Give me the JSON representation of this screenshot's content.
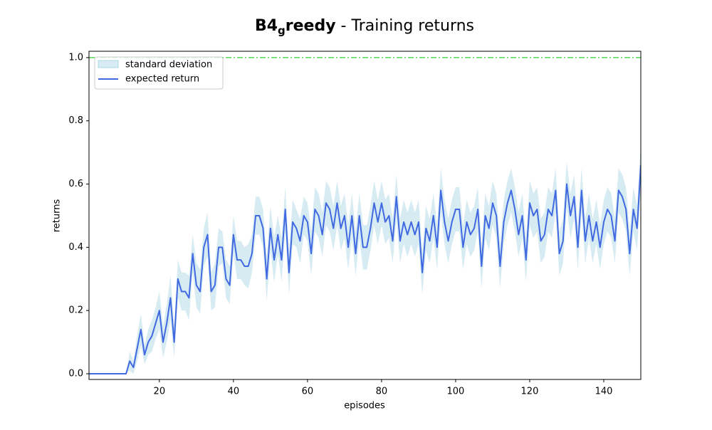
{
  "chart_data": {
    "type": "line",
    "title_parts": [
      "B4",
      "g",
      "reedy",
      " - Training returns"
    ],
    "x_label": "episodes",
    "y_label": "returns",
    "xlim": [
      1,
      150
    ],
    "ylim": [
      -0.018,
      1.02
    ],
    "xticks": [
      20,
      40,
      60,
      80,
      100,
      120,
      140
    ],
    "yticks": [
      {
        "value": 0,
        "label": "0.0"
      },
      {
        "value": 0.2,
        "label": "0.2"
      },
      {
        "value": 0.4,
        "label": "0.4"
      },
      {
        "value": 0.6,
        "label": "0.6"
      },
      {
        "value": 0.8,
        "label": "0.8"
      },
      {
        "value": 1,
        "label": "1.0"
      }
    ],
    "legend": "upper left",
    "hline": {
      "value": 1,
      "color": "#32cd32"
    },
    "x": [
      1,
      2,
      3,
      4,
      5,
      6,
      7,
      8,
      9,
      10,
      11,
      12,
      13,
      14,
      15,
      16,
      17,
      18,
      19,
      20,
      21,
      22,
      23,
      24,
      25,
      26,
      27,
      28,
      29,
      30,
      31,
      32,
      33,
      34,
      35,
      36,
      37,
      38,
      39,
      40,
      41,
      42,
      43,
      44,
      45,
      46,
      47,
      48,
      49,
      50,
      51,
      52,
      53,
      54,
      55,
      56,
      57,
      58,
      59,
      60,
      61,
      62,
      63,
      64,
      65,
      66,
      67,
      68,
      69,
      70,
      71,
      72,
      73,
      74,
      75,
      76,
      77,
      78,
      79,
      80,
      81,
      82,
      83,
      84,
      85,
      86,
      87,
      88,
      89,
      90,
      91,
      92,
      93,
      94,
      95,
      96,
      97,
      98,
      99,
      100,
      101,
      102,
      103,
      104,
      105,
      106,
      107,
      108,
      109,
      110,
      111,
      112,
      113,
      114,
      115,
      116,
      117,
      118,
      119,
      120,
      121,
      122,
      123,
      124,
      125,
      126,
      127,
      128,
      129,
      130,
      131,
      132,
      133,
      134,
      135,
      136,
      137,
      138,
      139,
      140,
      141,
      142,
      143,
      144,
      145,
      146,
      147,
      148,
      149,
      150
    ],
    "band": {
      "name": "standard deviation",
      "color": "#add8e6",
      "std": [
        0,
        0,
        0,
        0,
        0,
        0,
        0,
        0,
        0,
        0,
        0,
        0.03,
        0.02,
        0.04,
        0.05,
        0.03,
        0.04,
        0.05,
        0.05,
        0.06,
        0.05,
        0.06,
        0.07,
        0.05,
        0.06,
        0.06,
        0.06,
        0.07,
        0.06,
        0.07,
        0.07,
        0.06,
        0.07,
        0.06,
        0.07,
        0.06,
        0.05,
        0.06,
        0.06,
        0.06,
        0.06,
        0.06,
        0.06,
        0.07,
        0.06,
        0.06,
        0.06,
        0.06,
        0.07,
        0.07,
        0.07,
        0.06,
        0.07,
        0.07,
        0.07,
        0.07,
        0.06,
        0.07,
        0.06,
        0.06,
        0.07,
        0.07,
        0.07,
        0.07,
        0.07,
        0.07,
        0.07,
        0.07,
        0.07,
        0.07,
        0.07,
        0.07,
        0.07,
        0.07,
        0.07,
        0.07,
        0.07,
        0.07,
        0.07,
        0.07,
        0.07,
        0.07,
        0.07,
        0.07,
        0.07,
        0.07,
        0.07,
        0.07,
        0.07,
        0.07,
        0.07,
        0.07,
        0.07,
        0.07,
        0.07,
        0.07,
        0.07,
        0.07,
        0.07,
        0.07,
        0.07,
        0.07,
        0.07,
        0.07,
        0.07,
        0.07,
        0.07,
        0.07,
        0.07,
        0.07,
        0.07,
        0.07,
        0.07,
        0.07,
        0.07,
        0.07,
        0.07,
        0.07,
        0.07,
        0.07,
        0.07,
        0.07,
        0.07,
        0.07,
        0.07,
        0.07,
        0.07,
        0.07,
        0.07,
        0.07,
        0.07,
        0.07,
        0.07,
        0.07,
        0.07,
        0.07,
        0.07,
        0.07,
        0.07,
        0.07,
        0.07,
        0.07,
        0.07,
        0.07,
        0.07,
        0.07,
        0.07,
        0.07,
        0.07,
        0.07,
        0.07,
        0.07,
        0.07,
        0.07,
        0.07,
        0.07,
        0.07,
        0.07,
        0.07,
        0.07
      ]
    },
    "series": [
      {
        "name": "expected return",
        "color": "#4169e1",
        "values": [
          0,
          0,
          0,
          0,
          0,
          0,
          0,
          0,
          0,
          0,
          0,
          0.04,
          0.02,
          0.08,
          0.14,
          0.06,
          0.1,
          0.12,
          0.16,
          0.2,
          0.1,
          0.16,
          0.24,
          0.1,
          0.3,
          0.26,
          0.26,
          0.24,
          0.38,
          0.28,
          0.26,
          0.4,
          0.44,
          0.26,
          0.28,
          0.4,
          0.4,
          0.3,
          0.28,
          0.44,
          0.36,
          0.36,
          0.34,
          0.34,
          0.38,
          0.5,
          0.5,
          0.46,
          0.3,
          0.46,
          0.36,
          0.44,
          0.36,
          0.52,
          0.32,
          0.48,
          0.46,
          0.42,
          0.5,
          0.48,
          0.38,
          0.52,
          0.5,
          0.44,
          0.54,
          0.52,
          0.46,
          0.54,
          0.46,
          0.5,
          0.4,
          0.5,
          0.38,
          0.5,
          0.4,
          0.4,
          0.46,
          0.54,
          0.48,
          0.54,
          0.48,
          0.5,
          0.42,
          0.56,
          0.42,
          0.48,
          0.44,
          0.48,
          0.44,
          0.48,
          0.32,
          0.46,
          0.42,
          0.5,
          0.4,
          0.58,
          0.48,
          0.42,
          0.48,
          0.52,
          0.52,
          0.4,
          0.48,
          0.44,
          0.46,
          0.52,
          0.34,
          0.5,
          0.46,
          0.54,
          0.5,
          0.34,
          0.48,
          0.54,
          0.58,
          0.52,
          0.44,
          0.5,
          0.36,
          0.54,
          0.5,
          0.52,
          0.42,
          0.44,
          0.52,
          0.5,
          0.58,
          0.38,
          0.42,
          0.6,
          0.5,
          0.56,
          0.4,
          0.58,
          0.42,
          0.5,
          0.42,
          0.48,
          0.4,
          0.48,
          0.52,
          0.5,
          0.42,
          0.58,
          0.56,
          0.52,
          0.38,
          0.52,
          0.46,
          0.66
        ]
      }
    ]
  }
}
